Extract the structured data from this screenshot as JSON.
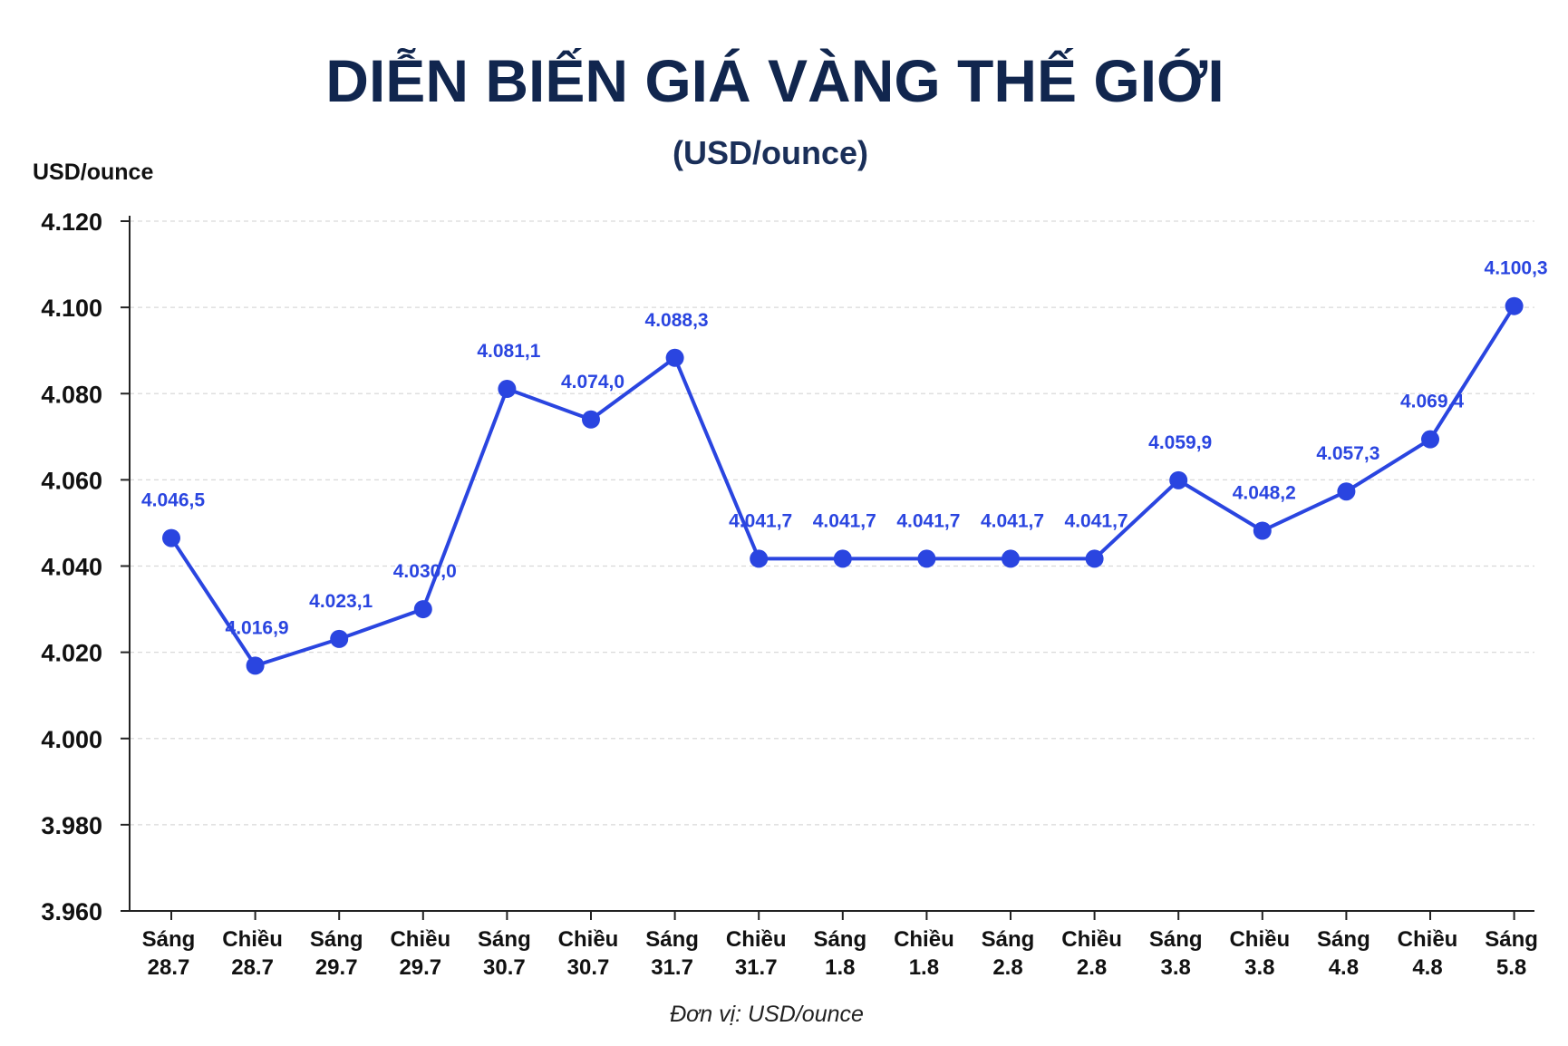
{
  "chart_data": {
    "type": "line",
    "title": "DIỄN BIẾN GIÁ VÀNG THẾ GIỚI",
    "subtitle": "(USD/ounce)",
    "ylabel": "USD/ounce",
    "footnote": "Đơn vị: USD/ounce",
    "ylim": [
      3960,
      4120
    ],
    "yticks": [
      3960,
      3980,
      4000,
      4020,
      4040,
      4060,
      4080,
      4100,
      4120
    ],
    "ytick_labels": [
      "3.960",
      "3.980",
      "4.000",
      "4.020",
      "4.040",
      "4.060",
      "4.080",
      "4.100",
      "4.120"
    ],
    "grid": true,
    "categories": [
      [
        "Sáng",
        "28.7"
      ],
      [
        "Chiều",
        "28.7"
      ],
      [
        "Sáng",
        "29.7"
      ],
      [
        "Chiều",
        "29.7"
      ],
      [
        "Sáng",
        "30.7"
      ],
      [
        "Chiều",
        "30.7"
      ],
      [
        "Sáng",
        "31.7"
      ],
      [
        "Chiều",
        "31.7"
      ],
      [
        "Sáng",
        "1.8"
      ],
      [
        "Chiều",
        "1.8"
      ],
      [
        "Sáng",
        "2.8"
      ],
      [
        "Chiều",
        "2.8"
      ],
      [
        "Sáng",
        "3.8"
      ],
      [
        "Chiều",
        "3.8"
      ],
      [
        "Sáng",
        "4.8"
      ],
      [
        "Chiều",
        "4.8"
      ],
      [
        "Sáng",
        "5.8"
      ]
    ],
    "values": [
      4046.5,
      4016.9,
      4023.1,
      4030.0,
      4081.1,
      4074.0,
      4088.3,
      4041.7,
      4041.7,
      4041.7,
      4041.7,
      4041.7,
      4059.9,
      4048.2,
      4057.3,
      4069.4,
      4100.3
    ],
    "value_labels": [
      "4.046,5",
      "4.016,9",
      "4.023,1",
      "4.030,0",
      "4.081,1",
      "4.074,0",
      "4.088,3",
      "4.041,7",
      "4.041,7",
      "4.041,7",
      "4.041,7",
      "4.041,7",
      "4.059,9",
      "4.048,2",
      "4.057,3",
      "4.069,4",
      "4.100,3"
    ],
    "colors": {
      "line": "#2a45e0",
      "marker": "#2a45e0",
      "data_label": "#2a45e0",
      "title": "#11264e",
      "grid": "#d9d9d9",
      "axis": "#222222"
    }
  }
}
